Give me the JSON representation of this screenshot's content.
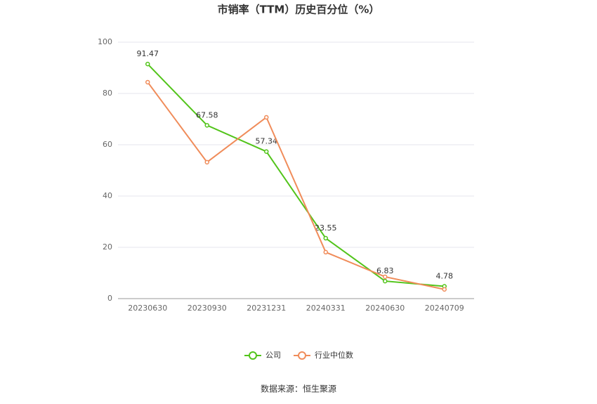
{
  "chart_data": {
    "type": "line",
    "title": "市销率（TTM）历史百分位（%）",
    "categories": [
      "20230630",
      "20230930",
      "20231231",
      "20240331",
      "20240630",
      "20240709"
    ],
    "series": [
      {
        "name": "公司",
        "color": "#52c41a",
        "values": [
          91.47,
          67.58,
          57.34,
          23.55,
          6.83,
          4.78
        ]
      },
      {
        "name": "行业中位数",
        "color": "#f08c5a",
        "values": [
          84.4,
          53.2,
          70.7,
          18.1,
          8.5,
          3.6
        ]
      }
    ],
    "ylim": [
      0,
      100
    ],
    "yticks": [
      0,
      20,
      40,
      60,
      80,
      100
    ],
    "grid": true,
    "data_labels_series": 0,
    "source": "数据来源：恒生聚源"
  }
}
